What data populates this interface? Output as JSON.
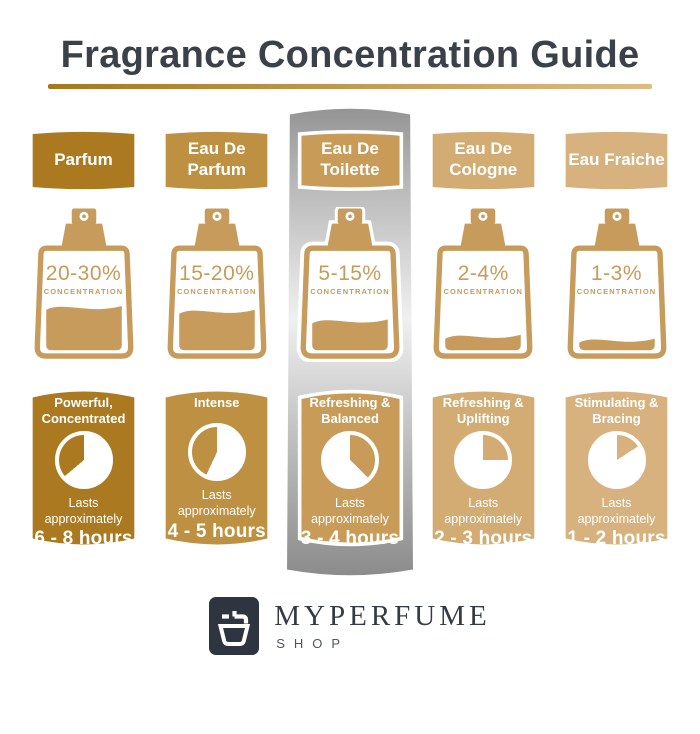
{
  "title": "Fragrance Concentration Guide",
  "title_color": "#3A4149",
  "underline_gradient": [
    "#A8761C",
    "#DDBC84"
  ],
  "bottle_color": "#C79B5B",
  "highlight_panel_gradient": [
    "#949494",
    "#ACACAC",
    "#F0F0F0",
    "#BDBDBD",
    "#8C8C8C"
  ],
  "columns": [
    {
      "name": "Parfum",
      "concentration": "20-30%",
      "concentration_label": "CONCENTRATION",
      "fill_percent": 44,
      "character": "Powerful, Concentrated",
      "lasts_label": "Lasts approximately",
      "duration": "6 - 8 hours",
      "color": "#AB7A20",
      "clock": {
        "start_deg": 230,
        "end_deg": 360
      },
      "highlighted": false
    },
    {
      "name": "Eau De Parfum",
      "concentration": "15-20%",
      "concentration_label": "CONCENTRATION",
      "fill_percent": 40,
      "character": "Intense",
      "lasts_label": "Lasts approximately",
      "duration": "4 - 5 hours",
      "color": "#BE9142",
      "clock": {
        "start_deg": 205,
        "end_deg": 360
      },
      "highlighted": false
    },
    {
      "name": "Eau De Toilette",
      "concentration": "5-15%",
      "concentration_label": "CONCENTRATION",
      "fill_percent": 30,
      "character": "Refreshing & Balanced",
      "lasts_label": "Lasts approximately",
      "duration": "3 - 4 hours",
      "color": "#C89C58",
      "clock": {
        "start_deg": 0,
        "end_deg": 135
      },
      "highlighted": true
    },
    {
      "name": "Eau De Cologne",
      "concentration": "2-4%",
      "concentration_label": "CONCENTRATION",
      "fill_percent": 14,
      "character": "Refreshing & Uplifting",
      "lasts_label": "Lasts approximately",
      "duration": "2 - 3 hours",
      "color": "#D3AC74",
      "clock": {
        "start_deg": 0,
        "end_deg": 90
      },
      "highlighted": false
    },
    {
      "name": "Eau Fraiche",
      "concentration": "1-3%",
      "concentration_label": "CONCENTRATION",
      "fill_percent": 10,
      "character": "Stimulating & Bracing",
      "lasts_label": "Lasts approximately",
      "duration": "1 - 2 hours",
      "color": "#D7B27E",
      "clock": {
        "start_deg": 0,
        "end_deg": 57
      },
      "highlighted": false
    }
  ],
  "footer": {
    "brand": "MYPERFUME",
    "sub": "SHOP",
    "logo_bg": "#2E3540",
    "logo_icon": "perfume-bottle-icon",
    "brand_color": "#343B46",
    "sub_color": "#50565F"
  }
}
